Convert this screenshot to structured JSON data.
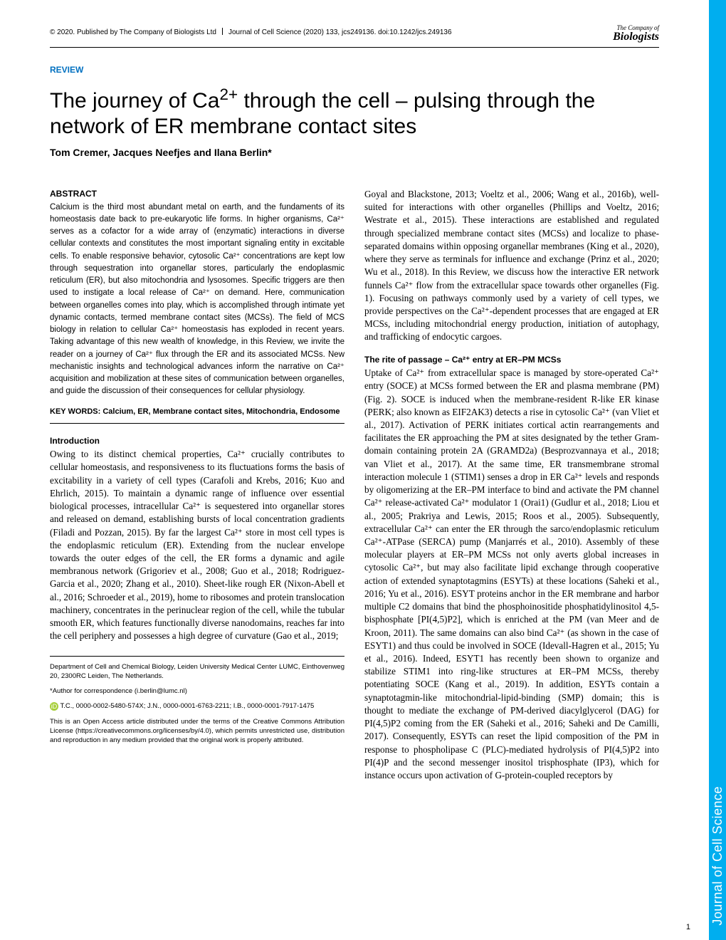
{
  "header": {
    "copyright": "© 2020. Published by The Company of Biologists Ltd",
    "journal": "Journal of Cell Science (2020) 133, jcs249136. doi:10.1242/jcs.249136",
    "logo_line1": "The Company of",
    "logo_line2": "Biologists"
  },
  "section_label": "REVIEW",
  "title_pre": "The journey of Ca",
  "title_post": " through the cell – pulsing through the network of ER membrane contact sites",
  "authors": "Tom Cremer, Jacques Neefjes and Ilana Berlin*",
  "abstract_heading": "ABSTRACT",
  "abstract_text": "Calcium is the third most abundant metal on earth, and the fundaments of its homeostasis date back to pre-eukaryotic life forms. In higher organisms, Ca²⁺ serves as a cofactor for a wide array of (enzymatic) interactions in diverse cellular contexts and constitutes the most important signaling entity in excitable cells. To enable responsive behavior, cytosolic Ca²⁺ concentrations are kept low through sequestration into organellar stores, particularly the endoplasmic reticulum (ER), but also mitochondria and lysosomes. Specific triggers are then used to instigate a local release of Ca²⁺ on demand. Here, communication between organelles comes into play, which is accomplished through intimate yet dynamic contacts, termed membrane contact sites (MCSs). The field of MCS biology in relation to cellular Ca²⁺ homeostasis has exploded in recent years. Taking advantage of this new wealth of knowledge, in this Review, we invite the reader on a journey of Ca²⁺ flux through the ER and its associated MCSs. New mechanistic insights and technological advances inform the narrative on Ca²⁺ acquisition and mobilization at these sites of communication between organelles, and guide the discussion of their consequences for cellular physiology.",
  "keywords": "KEY WORDS: Calcium, ER, Membrane contact sites, Mitochondria, Endosome",
  "intro_heading": "Introduction",
  "intro_text": "Owing to its distinct chemical properties, Ca²⁺ crucially contributes to cellular homeostasis, and responsiveness to its fluctuations forms the basis of excitability in a variety of cell types (Carafoli and Krebs, 2016; Kuo and Ehrlich, 2015). To maintain a dynamic range of influence over essential biological processes, intracellular Ca²⁺ is sequestered into organellar stores and released on demand, establishing bursts of local concentration gradients (Filadi and Pozzan, 2015). By far the largest Ca²⁺ store in most cell types is the endoplasmic reticulum (ER). Extending from the nuclear envelope towards the outer edges of the cell, the ER forms a dynamic and agile membranous network (Grigoriev et al., 2008; Guo et al., 2018; Rodriguez-Garcia et al., 2020; Zhang et al., 2010). Sheet-like rough ER (Nixon-Abell et al., 2016; Schroeder et al., 2019), home to ribosomes and protein translocation machinery, concentrates in the perinuclear region of the cell, while the tubular smooth ER, which features functionally diverse nanodomains, reaches far into the cell periphery and possesses a high degree of curvature (Gao et al., 2019;",
  "right_top": "Goyal and Blackstone, 2013; Voeltz et al., 2006; Wang et al., 2016b), well-suited for interactions with other organelles (Phillips and Voeltz, 2016; Westrate et al., 2015). These interactions are established and regulated through specialized membrane contact sites (MCSs) and localize to phase-separated domains within opposing organellar membranes (King et al., 2020), where they serve as terminals for influence and exchange (Prinz et al., 2020; Wu et al., 2018). In this Review, we discuss how the interactive ER network funnels Ca²⁺ flow from the extracellular space towards other organelles (Fig. 1). Focusing on pathways commonly used by a variety of cell types, we provide perspectives on the Ca²⁺-dependent processes that are engaged at ER MCSs, including mitochondrial energy production, initiation of autophagy, and trafficking of endocytic cargoes.",
  "rite_heading": "The rite of passage – Ca²⁺ entry at ER–PM MCSs",
  "rite_text": "Uptake of Ca²⁺ from extracellular space is managed by store-operated Ca²⁺ entry (SOCE) at MCSs formed between the ER and plasma membrane (PM) (Fig. 2). SOCE is induced when the membrane-resident R-like ER kinase (PERK; also known as EIF2AK3) detects a rise in cytosolic Ca²⁺ (van Vliet et al., 2017). Activation of PERK initiates cortical actin rearrangements and facilitates the ER approaching the PM at sites designated by the tether Gram-domain containing protein 2A (GRAMD2a) (Besprozvannaya et al., 2018; van Vliet et al., 2017). At the same time, ER transmembrane stromal interaction molecule 1 (STIM1) senses a drop in ER Ca²⁺ levels and responds by oligomerizing at the ER–PM interface to bind and activate the PM channel Ca²⁺ release-activated Ca²⁺ modulator 1 (Orai1) (Gudlur et al., 2018; Liou et al., 2005; Prakriya and Lewis, 2015; Roos et al., 2005). Subsequently, extracellular Ca²⁺ can enter the ER through the sarco/endoplasmic reticulum Ca²⁺-ATPase (SERCA) pump (Manjarrés et al., 2010). Assembly of these molecular players at ER–PM MCSs not only averts global increases in cytosolic Ca²⁺, but may also facilitate lipid exchange through cooperative action of extended synaptotagmins (ESYTs) at these locations (Saheki et al., 2016; Yu et al., 2016). ESYT proteins anchor in the ER membrane and harbor multiple C2 domains that bind the phosphoinositide phosphatidylinositol 4,5-bisphosphate [PI(4,5)P2], which is enriched at the PM (van Meer and de Kroon, 2011). The same domains can also bind Ca²⁺ (as shown in the case of ESYT1) and thus could be involved in SOCE (Idevall-Hagren et al., 2015; Yu et al., 2016). Indeed, ESYT1 has recently been shown to organize and stabilize STIM1 into ring-like structures at ER–PM MCSs, thereby potentiating SOCE (Kang et al., 2019). In addition, ESYTs contain a synaptotagmin-like mitochondrial-lipid-binding (SMP) domain; this is thought to mediate the exchange of PM-derived diacylglycerol (DAG) for PI(4,5)P2 coming from the ER (Saheki et al., 2016; Saheki and De Camilli, 2017). Consequently, ESYTs can reset the lipid composition of the PM in response to phospholipase C (PLC)-mediated hydrolysis of PI(4,5)P2 into PI(4)P and the second messenger inositol trisphosphate (IP3), which for instance occurs upon activation of G-protein-coupled receptors by",
  "affiliation": "Department of Cell and Chemical Biology, Leiden University Medical Center LUMC, Einthovenweg 20, 2300RC Leiden, The Netherlands.",
  "correspondence": "*Author for correspondence (i.berlin@lumc.nl)",
  "orcids": "T.C., 0000-0002-5480-574X; J.N., 0000-0001-6763-2211; I.B., 0000-0001-7917-1475",
  "license": "This is an Open Access article distributed under the terms of the Creative Commons Attribution License (https://creativecommons.org/licenses/by/4.0), which permits unrestricted use, distribution and reproduction in any medium provided that the original work is properly attributed.",
  "side_tab": "Journal of Cell Science",
  "page_number": "1"
}
